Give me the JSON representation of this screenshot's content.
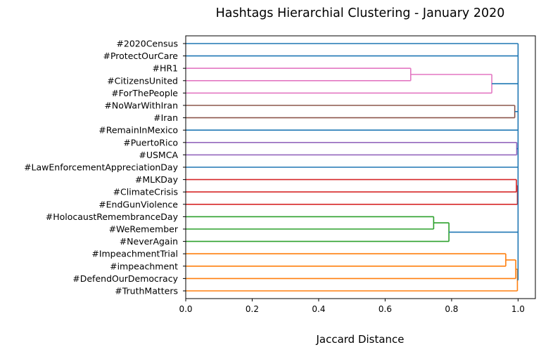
{
  "chart_data": {
    "type": "dendrogram",
    "orientation": "horizontal",
    "title": "Hashtags Hierarchial Clustering - January 2020",
    "xlabel": "Jaccard Distance",
    "ylabel": "",
    "xlim": [
      0,
      1.05
    ],
    "xticks": [
      "0.0",
      "0.2",
      "0.4",
      "0.6",
      "0.8",
      "1.0"
    ],
    "grid": false,
    "leaves": [
      "#2020Census",
      "#ProtectOurCare",
      "#HR1",
      "#CitizensUnited",
      "#ForThePeople",
      "#NoWarWithIran",
      "#Iran",
      "#RemainInMexico",
      "#PuertoRico",
      "#USMCA",
      "#LawEnforcementAppreciationDay",
      "#MLKDay",
      "#ClimateCrisis",
      "#EndGunViolence",
      "#HolocaustRemembranceDay",
      "#WeRemember",
      "#NeverAgain",
      "#ImpeachmentTrial",
      "#impeachment",
      "#DefendOurDemocracy",
      "#TruthMatters"
    ],
    "merges": [
      {
        "id": "m1",
        "children": [
          "#HR1",
          "#CitizensUnited"
        ],
        "distance": 0.677,
        "color": "#e377c2"
      },
      {
        "id": "m2",
        "children": [
          "m1",
          "#ForThePeople"
        ],
        "distance": 0.921,
        "color": "#e377c2"
      },
      {
        "id": "m3",
        "children": [
          "#NoWarWithIran",
          "#Iran"
        ],
        "distance": 0.99,
        "color": "#8c564b"
      },
      {
        "id": "m4",
        "children": [
          "#PuertoRico",
          "#USMCA"
        ],
        "distance": 0.996,
        "color": "#9467bd"
      },
      {
        "id": "m5",
        "children": [
          "#MLKDay",
          "#ClimateCrisis"
        ],
        "distance": 0.995,
        "color": "#d62728"
      },
      {
        "id": "m6",
        "children": [
          "m5",
          "#EndGunViolence"
        ],
        "distance": 0.998,
        "color": "#d62728"
      },
      {
        "id": "m7",
        "children": [
          "#HolocaustRemembranceDay",
          "#WeRemember"
        ],
        "distance": 0.746,
        "color": "#2ca02c"
      },
      {
        "id": "m8",
        "children": [
          "m7",
          "#NeverAgain"
        ],
        "distance": 0.792,
        "color": "#2ca02c"
      },
      {
        "id": "m9",
        "children": [
          "#ImpeachmentTrial",
          "#impeachment"
        ],
        "distance": 0.963,
        "color": "#ff7f0e"
      },
      {
        "id": "m10",
        "children": [
          "m9",
          "#DefendOurDemocracy"
        ],
        "distance": 0.993,
        "color": "#ff7f0e"
      },
      {
        "id": "m11",
        "children": [
          "m10",
          "#TruthMatters"
        ],
        "distance": 0.998,
        "color": "#ff7f0e"
      },
      {
        "id": "m12",
        "children": [
          "#2020Census",
          "#ProtectOurCare",
          "m2",
          "m3",
          "#RemainInMexico",
          "m4",
          "#LawEnforcementAppreciationDay",
          "m6",
          "m8",
          "m11"
        ],
        "distance": 1.0,
        "color": "#1f77b4"
      }
    ],
    "colors": {
      "above_threshold": "#1f77b4",
      "pink": "#e377c2",
      "brown": "#8c564b",
      "purple": "#9467bd",
      "red": "#d62728",
      "green": "#2ca02c",
      "orange": "#ff7f0e"
    }
  }
}
